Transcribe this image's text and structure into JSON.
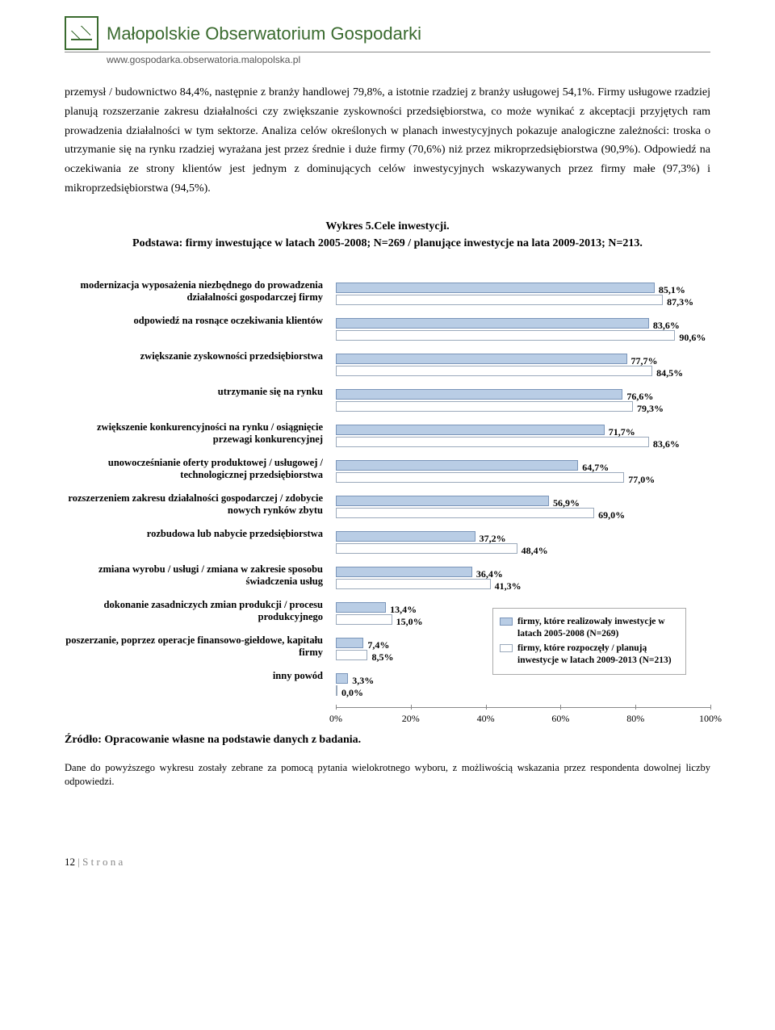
{
  "header": {
    "title": "Małopolskie Obserwatorium Gospodarki",
    "url": "www.gospodarka.obserwatoria.malopolska.pl"
  },
  "paragraph": "przemysł / budownictwo 84,4%, następnie z branży handlowej 79,8%, a istotnie rzadziej z branży usługowej 54,1%. Firmy usługowe rzadziej planują rozszerzanie zakresu działalności czy zwiększanie zyskowności przedsiębiorstwa, co może wynikać z akceptacji przyjętych ram prowadzenia działalności w tym sektorze. Analiza celów określonych w planach inwestycyjnych pokazuje analogiczne zależności: troska o utrzymanie się na rynku rzadziej wyrażana jest przez średnie i duże firmy (70,6%) niż przez mikroprzedsiębiorstwa (90,9%). Odpowiedź na oczekiwania ze strony klientów jest jednym z dominujących celów inwestycyjnych wskazywanych przez firmy małe (97,3%) i mikroprzedsiębiorstwa (94,5%).",
  "chart": {
    "title": "Wykres 5.Cele inwestycji.",
    "subtitle": "Podstawa: firmy inwestujące w latach 2005-2008; N=269 / planujące inwestycje na lata 2009-2013; N=213.",
    "type": "grouped-horizontal-bar",
    "x_max": 100,
    "x_ticks": [
      0,
      20,
      40,
      60,
      80,
      100
    ],
    "x_tick_labels": [
      "0%",
      "20%",
      "40%",
      "60%",
      "80%",
      "100%"
    ],
    "series": [
      {
        "key": "a",
        "label": "firmy, które realizowały inwestycje w latach 2005-2008 (N=269)",
        "color": "#b9cde5",
        "border": "#7a95b9"
      },
      {
        "key": "b",
        "label": "firmy, które rozpoczęły / planują inwestycje w latach 2009-2013 (N=213)",
        "color": "#ffffff",
        "border": "#9aa9bb"
      }
    ],
    "categories": [
      {
        "label": "modernizacja wyposażenia niezbędnego do prowadzenia działalności gospodarczej firmy",
        "a": 85.1,
        "b": 87.3,
        "a_label": "85,1%",
        "b_label": "87,3%"
      },
      {
        "label": "odpowiedź na rosnące oczekiwania klientów",
        "a": 83.6,
        "b": 90.6,
        "a_label": "83,6%",
        "b_label": "90,6%"
      },
      {
        "label": "zwiększanie zyskowności przedsiębiorstwa",
        "a": 77.7,
        "b": 84.5,
        "a_label": "77,7%",
        "b_label": "84,5%"
      },
      {
        "label": "utrzymanie się na rynku",
        "a": 76.6,
        "b": 79.3,
        "a_label": "76,6%",
        "b_label": "79,3%"
      },
      {
        "label": "zwiększenie konkurencyjności na rynku / osiągnięcie przewagi konkurencyjnej",
        "a": 71.7,
        "b": 83.6,
        "a_label": "71,7%",
        "b_label": "83,6%"
      },
      {
        "label": "unowocześnianie oferty produktowej / usługowej / technologicznej przedsiębiorstwa",
        "a": 64.7,
        "b": 77.0,
        "a_label": "64,7%",
        "b_label": "77,0%"
      },
      {
        "label": "rozszerzeniem zakresu działalności gospodarczej / zdobycie nowych rynków zbytu",
        "a": 56.9,
        "b": 69.0,
        "a_label": "56,9%",
        "b_label": "69,0%"
      },
      {
        "label": "rozbudowa lub nabycie przedsiębiorstwa",
        "a": 37.2,
        "b": 48.4,
        "a_label": "37,2%",
        "b_label": "48,4%"
      },
      {
        "label": "zmiana wyrobu / usługi / zmiana w zakresie sposobu świadczenia usług",
        "a": 36.4,
        "b": 41.3,
        "a_label": "36,4%",
        "b_label": "41,3%"
      },
      {
        "label": "dokonanie zasadniczych zmian produkcji / procesu produkcyjnego",
        "a": 13.4,
        "b": 15.0,
        "a_label": "13,4%",
        "b_label": "15,0%"
      },
      {
        "label": "poszerzanie, poprzez operacje finansowo-giełdowe, kapitału firmy",
        "a": 7.4,
        "b": 8.5,
        "a_label": "7,4%",
        "b_label": "8,5%"
      },
      {
        "label": "inny powód",
        "a": 3.3,
        "b": 0.0,
        "a_label": "3,3%",
        "b_label": "0,0%"
      }
    ]
  },
  "source": "Źródło: Opracowanie własne na podstawie danych z badania.",
  "footnote": "Dane do powyższego wykresu zostały zebrane za pomocą pytania wielokrotnego wyboru, z możliwością wskazania przez respondenta dowolnej liczby odpowiedzi.",
  "footer": {
    "page_num": "12",
    "page_label": "S t r o n a"
  }
}
